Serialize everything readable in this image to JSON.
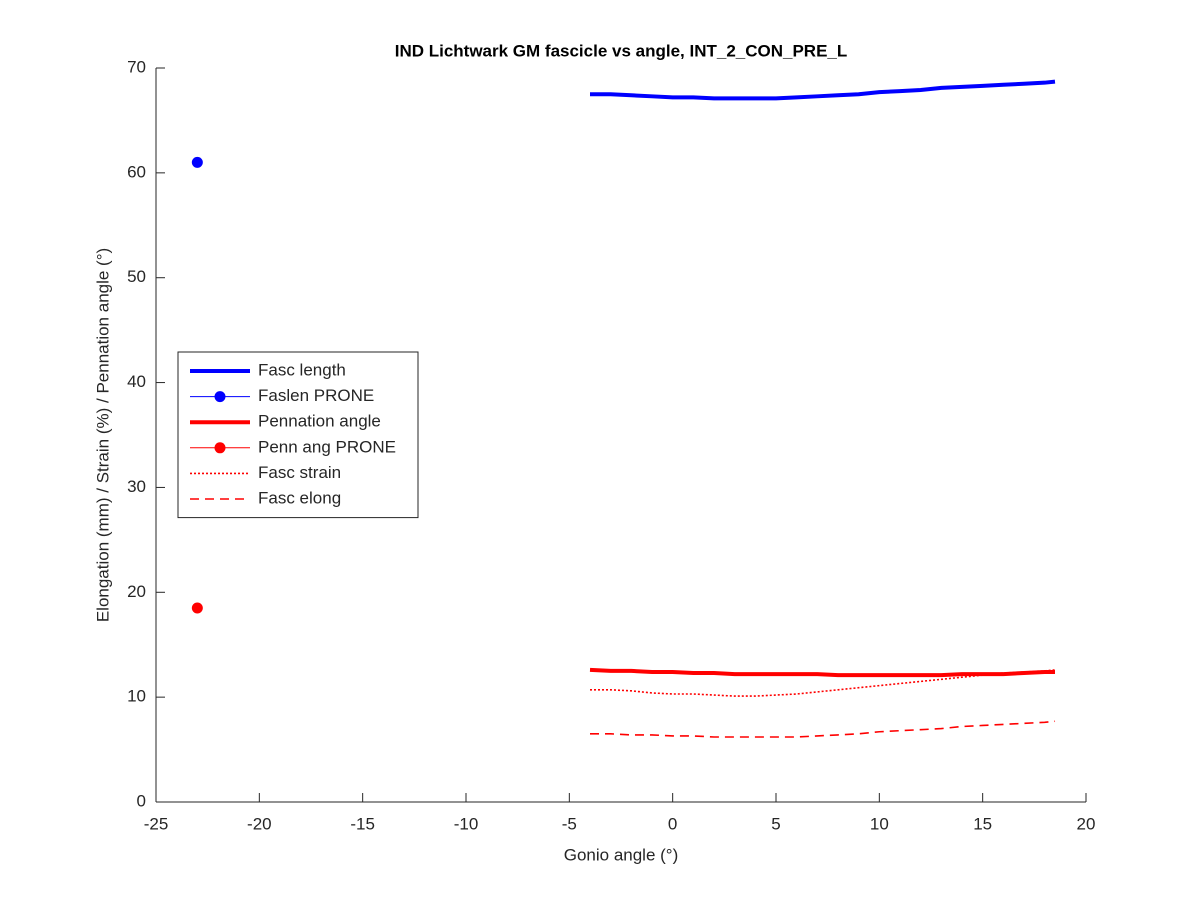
{
  "chart_data": {
    "type": "line",
    "title": "IND Lichtwark GM fascicle vs angle, INT_2_CON_PRE_L",
    "x_label": "Gonio angle (°)",
    "y_label": "Elongation (mm) / Strain (%) / Pennation angle (°)",
    "xlim": [
      -25,
      20
    ],
    "ylim": [
      0,
      70
    ],
    "xticks": [
      -25,
      -20,
      -15,
      -10,
      -5,
      0,
      5,
      10,
      15,
      20
    ],
    "yticks": [
      0,
      10,
      20,
      30,
      40,
      50,
      60,
      70
    ],
    "legend_position": "west",
    "series": [
      {
        "name": "Fasc length",
        "color": "#0000ff",
        "line_style": "solid",
        "x": [
          -4,
          -3,
          -2,
          -1,
          0,
          1,
          2,
          3,
          4,
          5,
          6,
          7,
          8,
          9,
          10,
          11,
          12,
          13,
          14,
          15,
          16,
          17,
          18,
          18.5
        ],
        "values": [
          67.5,
          67.5,
          67.4,
          67.3,
          67.2,
          67.2,
          67.1,
          67.1,
          67.1,
          67.1,
          67.2,
          67.3,
          67.4,
          67.5,
          67.7,
          67.8,
          67.9,
          68.1,
          68.2,
          68.3,
          68.4,
          68.5,
          68.6,
          68.7
        ]
      },
      {
        "name": "Faslen PRONE",
        "color": "#0000ff",
        "line_style": "none",
        "marker": "o",
        "x": [
          -23
        ],
        "values": [
          61
        ]
      },
      {
        "name": "Pennation angle",
        "color": "#ff0000",
        "line_style": "solid",
        "x": [
          -4,
          -3,
          -2,
          -1,
          0,
          1,
          2,
          3,
          4,
          5,
          6,
          7,
          8,
          9,
          10,
          11,
          12,
          13,
          14,
          15,
          16,
          17,
          18,
          18.5
        ],
        "values": [
          12.6,
          12.5,
          12.5,
          12.4,
          12.4,
          12.3,
          12.3,
          12.2,
          12.2,
          12.2,
          12.2,
          12.2,
          12.1,
          12.1,
          12.1,
          12.1,
          12.1,
          12.1,
          12.2,
          12.2,
          12.2,
          12.3,
          12.4,
          12.4
        ]
      },
      {
        "name": "Penn ang PRONE",
        "color": "#ff0000",
        "line_style": "none",
        "marker": "o",
        "x": [
          -23
        ],
        "values": [
          18.5
        ]
      },
      {
        "name": "Fasc strain",
        "color": "#ff0000",
        "line_style": "dotted",
        "x": [
          -4,
          -3,
          -2,
          -1,
          0,
          1,
          2,
          3,
          4,
          5,
          6,
          7,
          8,
          9,
          10,
          11,
          12,
          13,
          14,
          15,
          16,
          17,
          18,
          18.5
        ],
        "values": [
          10.7,
          10.7,
          10.6,
          10.4,
          10.3,
          10.3,
          10.2,
          10.1,
          10.1,
          10.2,
          10.3,
          10.5,
          10.7,
          10.9,
          11.1,
          11.3,
          11.5,
          11.7,
          11.9,
          12.1,
          12.3,
          12.4,
          12.5,
          12.6
        ]
      },
      {
        "name": "Fasc elong",
        "color": "#ff0000",
        "line_style": "dashed",
        "x": [
          -4,
          -3,
          -2,
          -1,
          0,
          1,
          2,
          3,
          4,
          5,
          6,
          7,
          8,
          9,
          10,
          11,
          12,
          13,
          14,
          15,
          16,
          17,
          18,
          18.5
        ],
        "values": [
          6.5,
          6.5,
          6.4,
          6.4,
          6.3,
          6.3,
          6.2,
          6.2,
          6.2,
          6.2,
          6.2,
          6.3,
          6.4,
          6.5,
          6.7,
          6.8,
          6.9,
          7.0,
          7.2,
          7.3,
          7.4,
          7.5,
          7.6,
          7.7
        ]
      }
    ]
  }
}
